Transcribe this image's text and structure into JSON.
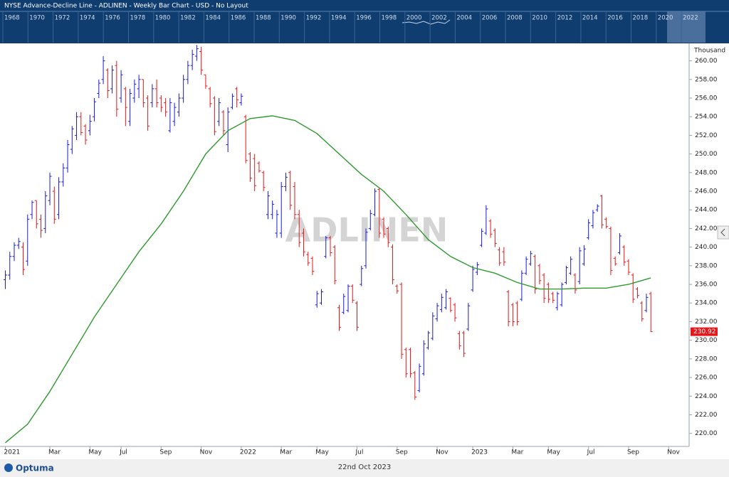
{
  "header": {
    "title": "NYSE  Advance-Decline Line - ADLINEN - Weekly Bar Chart - USD - No Layout",
    "navigator_years": [
      "1968",
      "1970",
      "1972",
      "1974",
      "1976",
      "1978",
      "1980",
      "1982",
      "1984",
      "1986",
      "1988",
      "1990",
      "1992",
      "1994",
      "1996",
      "1998",
      "2000",
      "2002",
      "2004",
      "2006",
      "2008",
      "2010",
      "2012",
      "2014",
      "2016",
      "2018",
      "2020",
      "2022"
    ]
  },
  "chart_data": {
    "type": "ohlc",
    "watermark": "ADLINEN",
    "unit_label": "Thousand",
    "up_color": "#1a1ad8",
    "down_color": "#e8161a",
    "bars": [
      [
        236.5,
        237.5,
        235.5,
        237
      ],
      [
        237,
        239.5,
        236.5,
        239
      ],
      [
        239,
        240.5,
        238.5,
        240.2
      ],
      [
        240.2,
        241,
        239.8,
        240.6
      ],
      [
        240,
        240.5,
        237,
        237.6
      ],
      [
        238.5,
        243.5,
        238,
        243
      ],
      [
        243.5,
        245,
        243,
        244.8
      ],
      [
        245,
        245,
        242,
        242.5
      ],
      [
        243,
        243.5,
        241,
        241.8
      ],
      [
        242,
        246,
        241.5,
        245.5
      ],
      [
        245,
        248,
        244.5,
        247.6
      ],
      [
        246,
        246.5,
        242.5,
        243
      ],
      [
        243.5,
        247.5,
        243,
        247
      ],
      [
        247,
        249,
        246.5,
        248.5
      ],
      [
        248.5,
        251.5,
        248,
        251
      ],
      [
        250.5,
        253,
        250,
        252.7
      ],
      [
        252,
        254.5,
        251.5,
        254
      ],
      [
        254,
        254.5,
        252,
        252.3
      ],
      [
        253,
        253.2,
        251,
        251.5
      ],
      [
        252.5,
        254.2,
        252,
        253.5
      ],
      [
        254,
        256,
        253.5,
        255.6
      ],
      [
        256.5,
        258,
        256,
        257.6
      ],
      [
        258,
        260.5,
        257.5,
        260
      ],
      [
        259,
        259.2,
        256,
        256.8
      ],
      [
        257,
        259.5,
        256.5,
        259
      ],
      [
        259.5,
        260,
        254,
        254.8
      ],
      [
        256,
        259,
        255.5,
        258.5
      ],
      [
        257,
        257.2,
        253,
        255
      ],
      [
        253.5,
        257,
        253,
        256.5
      ],
      [
        256,
        258,
        255.5,
        257.5
      ],
      [
        257,
        258.5,
        256,
        258
      ],
      [
        258,
        258,
        255,
        255.5
      ],
      [
        256,
        256.3,
        252.5,
        253
      ],
      [
        255.5,
        257.5,
        255,
        257
      ],
      [
        257,
        258,
        255,
        255.5
      ],
      [
        256,
        256.3,
        254.5,
        255
      ],
      [
        255.5,
        256,
        254,
        254.5
      ],
      [
        252.5,
        256,
        252.3,
        255.5
      ],
      [
        253.5,
        255.5,
        253,
        255
      ],
      [
        254.5,
        256.5,
        254,
        256
      ],
      [
        256,
        258.5,
        255.5,
        258
      ],
      [
        258,
        260,
        257.5,
        259.5
      ],
      [
        259.5,
        261.2,
        259,
        260.7
      ],
      [
        260.5,
        261.7,
        260,
        261.3
      ],
      [
        261,
        261.5,
        258.5,
        259
      ],
      [
        258.5,
        258.5,
        257,
        257.3
      ],
      [
        257,
        257.2,
        255,
        255.4
      ],
      [
        256,
        256.2,
        252,
        252.4
      ],
      [
        253.5,
        256,
        253,
        255.5
      ],
      [
        254.5,
        254.7,
        252,
        252.5
      ],
      [
        251,
        255,
        250.2,
        254.5
      ],
      [
        255,
        256.5,
        254.8,
        256.2
      ],
      [
        257,
        257.2,
        255,
        255.8
      ],
      [
        255.5,
        256.5,
        255.2,
        256.2
      ],
      [
        254,
        254.2,
        249,
        249.3
      ],
      [
        250,
        250.2,
        247,
        247.4
      ],
      [
        249.5,
        250,
        246,
        246.6
      ],
      [
        249,
        249.2,
        248,
        248.2
      ],
      [
        248,
        248.2,
        246,
        246.4
      ],
      [
        243.5,
        246,
        243,
        245.5
      ],
      [
        243.5,
        245,
        243,
        244.6
      ],
      [
        241.5,
        244,
        241,
        243.5
      ],
      [
        241.5,
        247,
        241,
        246.5
      ],
      [
        246.5,
        248,
        246,
        247.5
      ],
      [
        248,
        248.2,
        244,
        244.5
      ],
      [
        246.5,
        247,
        243,
        243.5
      ],
      [
        243.5,
        244,
        240,
        240.5
      ],
      [
        241.5,
        242,
        239,
        239.5
      ],
      [
        239.2,
        239.5,
        238,
        238.3
      ],
      [
        238.8,
        239,
        237,
        237.4
      ],
      [
        233.8,
        235.3,
        233.5,
        235
      ],
      [
        234,
        235.5,
        233.8,
        235.2
      ],
      [
        239,
        241.2,
        238.8,
        241
      ],
      [
        241,
        241.2,
        239,
        239.4
      ],
      [
        240,
        240.2,
        236,
        236.4
      ],
      [
        233.5,
        233.8,
        231,
        231.4
      ],
      [
        233,
        235,
        232.8,
        234.7
      ],
      [
        233.2,
        236,
        233,
        235.8
      ],
      [
        235.8,
        236,
        234,
        234.3
      ],
      [
        234,
        234.2,
        231,
        231.4
      ],
      [
        236,
        238,
        235.8,
        237.7
      ],
      [
        238,
        242,
        237.7,
        241.6
      ],
      [
        242,
        244,
        241.8,
        243.6
      ],
      [
        243.5,
        246.3,
        243.3,
        246
      ],
      [
        246.2,
        246.4,
        241,
        241.5
      ],
      [
        243,
        243.2,
        241,
        241.4
      ],
      [
        242,
        242.2,
        240,
        240.5
      ],
      [
        240,
        240.3,
        236,
        236.5
      ],
      [
        235.8,
        236,
        235,
        235.3
      ],
      [
        236,
        236.2,
        228,
        228.5
      ],
      [
        229,
        229.2,
        226,
        226.4
      ],
      [
        229,
        229.2,
        226,
        226.4
      ],
      [
        226.5,
        226.7,
        223.6,
        223.9
      ],
      [
        224.6,
        227.5,
        224.4,
        227.2
      ],
      [
        226.4,
        230,
        226.2,
        229.6
      ],
      [
        229.2,
        231,
        229,
        230.8
      ],
      [
        230.2,
        233,
        230,
        232.6
      ],
      [
        232.3,
        234,
        232,
        233.7
      ],
      [
        233.3,
        235,
        233,
        234.6
      ],
      [
        233.5,
        235.5,
        233.3,
        235.2
      ],
      [
        234.5,
        234.6,
        233,
        233.2
      ],
      [
        233.8,
        234,
        232,
        232.4
      ],
      [
        230.7,
        231,
        229,
        229.4
      ],
      [
        230.8,
        231,
        228.2,
        228.6
      ],
      [
        231.2,
        234,
        231,
        233.7
      ],
      [
        235.4,
        238,
        235.2,
        237.6
      ],
      [
        237.3,
        238.4,
        237,
        238.1
      ],
      [
        240.2,
        242,
        240,
        241.7
      ],
      [
        241.5,
        244.5,
        241.3,
        244.1
      ],
      [
        242.8,
        243,
        241,
        241.4
      ],
      [
        241.8,
        242,
        240,
        240.4
      ],
      [
        239.7,
        240,
        238,
        238.3
      ],
      [
        239.5,
        240,
        238,
        238.4
      ],
      [
        235.2,
        235.4,
        231.5,
        232
      ],
      [
        233.8,
        234,
        231.5,
        232
      ],
      [
        234,
        234.2,
        231.6,
        232
      ],
      [
        234.4,
        237.5,
        234.2,
        237.2
      ],
      [
        237.2,
        239,
        237,
        238.7
      ],
      [
        238.2,
        239.6,
        238,
        239.3
      ],
      [
        239,
        239.2,
        235,
        235.5
      ],
      [
        238,
        238.2,
        236,
        236.4
      ],
      [
        237,
        237.2,
        234,
        234.5
      ],
      [
        236,
        236.2,
        234,
        234.4
      ],
      [
        235,
        235.2,
        234,
        234.3
      ],
      [
        233.5,
        235.2,
        233.2,
        235
      ],
      [
        233.8,
        236.2,
        233.6,
        236
      ],
      [
        236.2,
        238,
        236,
        237.8
      ],
      [
        237.2,
        239,
        237,
        238.7
      ],
      [
        237,
        237.2,
        235,
        235.4
      ],
      [
        236.3,
        240,
        236,
        239.6
      ],
      [
        238.2,
        240.2,
        238,
        239.8
      ],
      [
        241,
        243,
        240.8,
        242.6
      ],
      [
        242.3,
        244,
        242,
        243.7
      ],
      [
        244,
        244.6,
        243.8,
        244.4
      ],
      [
        245.5,
        245.6,
        242,
        242.4
      ],
      [
        243,
        243.2,
        242,
        242.2
      ],
      [
        242,
        242.2,
        237,
        237.5
      ],
      [
        238.8,
        239,
        238,
        238.2
      ],
      [
        239.4,
        241.5,
        239.2,
        241.2
      ],
      [
        240,
        240.2,
        238,
        238.4
      ],
      [
        238.5,
        238.7,
        237,
        237.3
      ],
      [
        237,
        237.2,
        234,
        234.4
      ],
      [
        235.5,
        235.7,
        234.5,
        234.8
      ],
      [
        234,
        234.2,
        232,
        232.3
      ],
      [
        233.2,
        235,
        233,
        234.6
      ],
      [
        235,
        235.2,
        230.9,
        230.92
      ]
    ],
    "ma": {
      "color": "#2e9a2e",
      "x": [
        0,
        5,
        10,
        15,
        20,
        25,
        30,
        35,
        40,
        45,
        50,
        55,
        60,
        65,
        70,
        75,
        80,
        85,
        90,
        95,
        100,
        105,
        110,
        115,
        120,
        125,
        130,
        135,
        140,
        145
      ],
      "values": [
        219,
        221,
        224.5,
        228.5,
        232.5,
        236,
        239.5,
        242.5,
        246,
        250,
        252.5,
        253.8,
        254.1,
        253.6,
        252.2,
        250,
        247.8,
        246,
        243.5,
        240.8,
        239,
        237.8,
        237.2,
        236.2,
        235.5,
        235.5,
        235.6,
        235.6,
        236,
        236.7
      ]
    },
    "xlim": [
      -1.2,
      153.6
    ],
    "xticks": [
      {
        "value": 0,
        "label": "2021"
      },
      {
        "value": 10,
        "label": "Mar"
      },
      {
        "value": 19,
        "label": "May"
      },
      {
        "value": 26,
        "label": "Jul"
      },
      {
        "value": 35,
        "label": "Sep"
      },
      {
        "value": 44,
        "label": "Nov"
      },
      {
        "value": 53,
        "label": "2022"
      },
      {
        "value": 62,
        "label": "Mar"
      },
      {
        "value": 70,
        "label": "May"
      },
      {
        "value": 79,
        "label": "Jul"
      },
      {
        "value": 88,
        "label": "Sep"
      },
      {
        "value": 97,
        "label": "Nov"
      },
      {
        "value": 105,
        "label": "2023"
      },
      {
        "value": 114,
        "label": "Mar"
      },
      {
        "value": 122,
        "label": "May"
      },
      {
        "value": 131,
        "label": "Jul"
      },
      {
        "value": 140,
        "label": "Sep"
      },
      {
        "value": 149,
        "label": "Nov"
      }
    ],
    "ylim": [
      218.6,
      261.8
    ],
    "yticks": [
      {
        "value": 220,
        "label": "220.00"
      },
      {
        "value": 222,
        "label": "222.00"
      },
      {
        "value": 224,
        "label": "224.00"
      },
      {
        "value": 226,
        "label": "226.00"
      },
      {
        "value": 228,
        "label": "228.00"
      },
      {
        "value": 230,
        "label": "230.00"
      },
      {
        "value": 232,
        "label": "232.00"
      },
      {
        "value": 234,
        "label": "234.00"
      },
      {
        "value": 236,
        "label": "236.00"
      },
      {
        "value": 238,
        "label": "238.00"
      },
      {
        "value": 240,
        "label": "240.00"
      },
      {
        "value": 242,
        "label": "242.00"
      },
      {
        "value": 244,
        "label": "244.00"
      },
      {
        "value": 246,
        "label": "246.00"
      },
      {
        "value": 248,
        "label": "248.00"
      },
      {
        "value": 250,
        "label": "250.00"
      },
      {
        "value": 252,
        "label": "252.00"
      },
      {
        "value": 254,
        "label": "254.00"
      },
      {
        "value": 256,
        "label": "256.00"
      },
      {
        "value": 258,
        "label": "258.00"
      },
      {
        "value": 260,
        "label": "260.00"
      }
    ]
  },
  "footer": {
    "brand": "Optuma",
    "date": "22nd Oct 2023"
  }
}
